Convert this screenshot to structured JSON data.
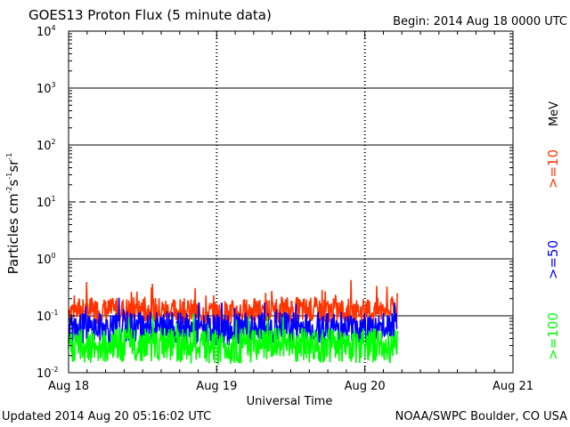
{
  "title": "GOES13 Proton Flux (5 minute data)",
  "begin_label": "Begin: 2014 Aug 18 0000 UTC",
  "updated_label": "Updated 2014 Aug 20 05:16:02 UTC",
  "credit_label": "NOAA/SWPC Boulder, CO USA",
  "colors": {
    "ge10": "#ff3300",
    "ge50": "#0000ff",
    "ge100": "#00ff00",
    "axis": "#000000"
  },
  "chart_data": {
    "type": "line",
    "title": "GOES13 Proton Flux (5 minute data)",
    "xlabel": "Universal Time",
    "ylabel": {
      "base": "Particles cm",
      "exp1": "-2",
      "mid1": "s",
      "exp2": "-1",
      "mid2": "sr",
      "exp3": "-1"
    },
    "unit_label": "MeV",
    "x_start": "2014-08-18 00:00",
    "x_end": "2014-08-21 00:00",
    "x_ticks": [
      "Aug 18",
      "Aug 19",
      "Aug 20",
      "Aug 21"
    ],
    "y_scale": "log",
    "ylim": [
      0.01,
      10000
    ],
    "y_ticks": [
      {
        "base": "10",
        "exp": "-2"
      },
      {
        "base": "10",
        "exp": "-1"
      },
      {
        "base": "10",
        "exp": "0"
      },
      {
        "base": "10",
        "exp": "1"
      },
      {
        "base": "10",
        "exp": "2"
      },
      {
        "base": "10",
        "exp": "3"
      },
      {
        "base": "10",
        "exp": "4"
      }
    ],
    "reference_lines": [
      {
        "y": 0.1,
        "style": "solid"
      },
      {
        "y": 1,
        "style": "solid"
      },
      {
        "y": 10,
        "style": "dashed"
      },
      {
        "y": 100,
        "style": "solid"
      },
      {
        "y": 1000,
        "style": "solid"
      }
    ],
    "data_end": "2014-08-20 05:15",
    "series": [
      {
        "name": ">=10",
        "color": "#ff3300",
        "x": [
          "2014-08-18 00:00",
          "2014-08-18 06:00",
          "2014-08-18 12:00",
          "2014-08-18 18:00",
          "2014-08-19 00:00",
          "2014-08-19 06:00",
          "2014-08-19 12:00",
          "2014-08-19 18:00",
          "2014-08-20 00:00",
          "2014-08-20 05:15"
        ],
        "y": [
          0.13,
          0.12,
          0.13,
          0.12,
          0.11,
          0.12,
          0.13,
          0.12,
          0.12,
          0.13
        ]
      },
      {
        "name": ">=50",
        "color": "#0000ff",
        "x": [
          "2014-08-18 00:00",
          "2014-08-18 06:00",
          "2014-08-18 12:00",
          "2014-08-18 18:00",
          "2014-08-19 00:00",
          "2014-08-19 06:00",
          "2014-08-19 12:00",
          "2014-08-19 18:00",
          "2014-08-20 00:00",
          "2014-08-20 05:15"
        ],
        "y": [
          0.06,
          0.06,
          0.065,
          0.06,
          0.055,
          0.06,
          0.065,
          0.06,
          0.06,
          0.06
        ]
      },
      {
        "name": ">=100",
        "color": "#00ff00",
        "x": [
          "2014-08-18 00:00",
          "2014-08-18 06:00",
          "2014-08-18 12:00",
          "2014-08-18 18:00",
          "2014-08-19 00:00",
          "2014-08-19 06:00",
          "2014-08-19 12:00",
          "2014-08-19 18:00",
          "2014-08-20 00:00",
          "2014-08-20 05:15"
        ],
        "y": [
          0.03,
          0.03,
          0.032,
          0.03,
          0.028,
          0.03,
          0.031,
          0.03,
          0.03,
          0.03
        ]
      }
    ]
  }
}
